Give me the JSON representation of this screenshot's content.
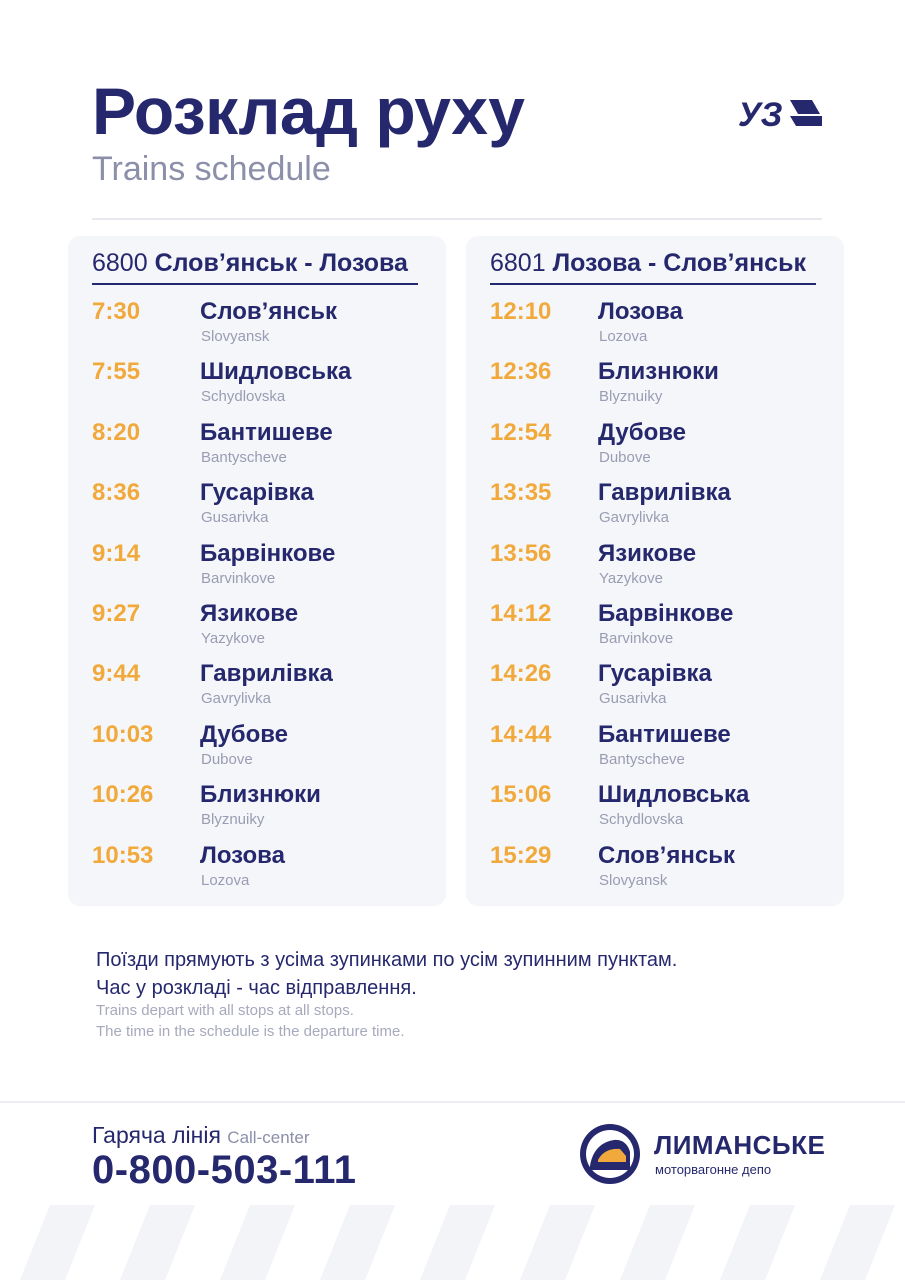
{
  "header": {
    "title": "Розклад руху",
    "subtitle": "Trains schedule",
    "brand_logo_text": "УЗ"
  },
  "trains": [
    {
      "number": "6800",
      "route": "Слов’янськ - Лозова",
      "stops": [
        {
          "time": "7:30",
          "station": "Слов’янськ",
          "station_latin": "Slovyansk"
        },
        {
          "time": "7:55",
          "station": "Шидловська",
          "station_latin": "Schydlovska"
        },
        {
          "time": "8:20",
          "station": "Бантишеве",
          "station_latin": "Bantyscheve"
        },
        {
          "time": "8:36",
          "station": "Гусарівка",
          "station_latin": "Gusarivka"
        },
        {
          "time": "9:14",
          "station": "Барвінкове",
          "station_latin": "Barvinkove"
        },
        {
          "time": "9:27",
          "station": "Язикове",
          "station_latin": "Yazykove"
        },
        {
          "time": "9:44",
          "station": "Гаврилівка",
          "station_latin": "Gavrylivka"
        },
        {
          "time": "10:03",
          "station": "Дубове",
          "station_latin": "Dubove"
        },
        {
          "time": "10:26",
          "station": "Близнюки",
          "station_latin": "Blyznuiky"
        },
        {
          "time": "10:53",
          "station": "Лозова",
          "station_latin": "Lozova"
        }
      ]
    },
    {
      "number": "6801",
      "route": "Лозова - Слов’янськ",
      "stops": [
        {
          "time": "12:10",
          "station": "Лозова",
          "station_latin": "Lozova"
        },
        {
          "time": "12:36",
          "station": "Близнюки",
          "station_latin": "Blyznuiky"
        },
        {
          "time": "12:54",
          "station": "Дубове",
          "station_latin": "Dubove"
        },
        {
          "time": "13:35",
          "station": "Гаврилівка",
          "station_latin": "Gavrylivka"
        },
        {
          "time": "13:56",
          "station": "Язикове",
          "station_latin": "Yazykove"
        },
        {
          "time": "14:12",
          "station": "Барвінкове",
          "station_latin": "Barvinkove"
        },
        {
          "time": "14:26",
          "station": "Гусарівка",
          "station_latin": "Gusarivka"
        },
        {
          "time": "14:44",
          "station": "Бантишеве",
          "station_latin": "Bantyscheve"
        },
        {
          "time": "15:06",
          "station": "Шидловська",
          "station_latin": "Schydlovska"
        },
        {
          "time": "15:29",
          "station": "Слов’янськ",
          "station_latin": "Slovyansk"
        }
      ]
    }
  ],
  "notes": {
    "ua_line1": "Поїзди прямують з усіма зупинками по усім зупинним пунктам.",
    "ua_line2": "Час у розкладі - час відправлення.",
    "en_line1": "Trains depart with all stops at all stops.",
    "en_line2": "The time in the schedule is the departure time."
  },
  "footer": {
    "hotline_label": "Гаряча лінія",
    "hotline_label_latin": "Call-center",
    "hotline_number": "0-800-503-111",
    "depot_name": "ЛИМАНСЬКЕ",
    "depot_subtitle": "моторвагонне депо"
  },
  "colors": {
    "navy": "#26286e",
    "orange": "#f2a93b",
    "muted": "#8c8faa",
    "card_bg": "#f5f6f9"
  }
}
